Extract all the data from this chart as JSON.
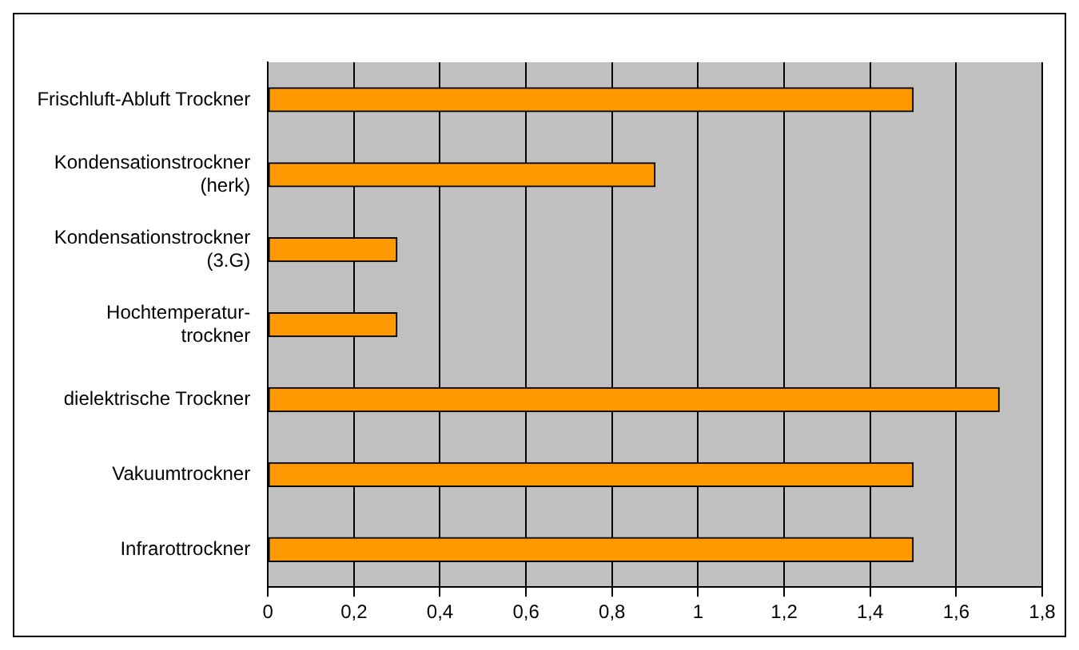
{
  "chart_data": {
    "type": "bar",
    "orientation": "horizontal",
    "categories": [
      "Frischluft-Abluft Trockner",
      "Kondensationstrockner\n(herk)",
      "Kondensationstrockner\n(3.G)",
      "Hochtemperatur-\ntrockner",
      "dielektrische Trockner",
      "Vakuumtrockner",
      "Infrarottrockner"
    ],
    "values": [
      1.5,
      0.9,
      0.3,
      0.3,
      1.7,
      1.5,
      1.5
    ],
    "color": "#ff9900",
    "xlim": [
      0,
      1.8
    ],
    "xticks": [
      0,
      {
        "value": 0.2,
        "label": "0,2"
      },
      {
        "value": 0.4,
        "label": "0,4"
      },
      {
        "value": 0.6,
        "label": "0,6"
      },
      {
        "value": 0.8,
        "label": "0,8"
      },
      1,
      {
        "value": 1.2,
        "label": "1,2"
      },
      {
        "value": 1.4,
        "label": "1,4"
      },
      {
        "value": 1.6,
        "label": "1,6"
      },
      {
        "value": 1.8,
        "label": "1,8"
      }
    ],
    "grid": "x",
    "legend": false
  }
}
